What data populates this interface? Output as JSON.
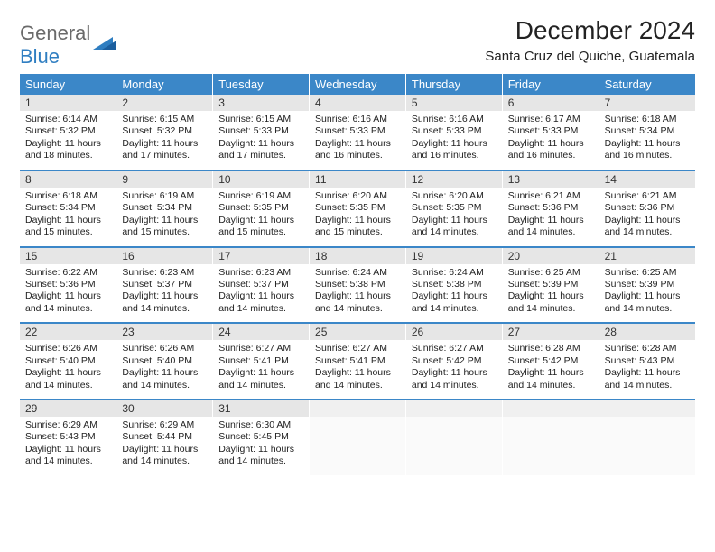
{
  "logo": {
    "top": "General",
    "bottom": "Blue"
  },
  "title": "December 2024",
  "location": "Santa Cruz del Quiche, Guatemala",
  "colors": {
    "header_bg": "#3b87c8",
    "header_fg": "#ffffff",
    "daynum_bg": "#e6e6e6",
    "separator": "#3b87c8",
    "logo_gray": "#6a6a6a",
    "logo_blue": "#2f7ec1"
  },
  "dayNames": [
    "Sunday",
    "Monday",
    "Tuesday",
    "Wednesday",
    "Thursday",
    "Friday",
    "Saturday"
  ],
  "weeks": [
    [
      {
        "num": "1",
        "sunrise": "Sunrise: 6:14 AM",
        "sunset": "Sunset: 5:32 PM",
        "daylight": "Daylight: 11 hours and 18 minutes."
      },
      {
        "num": "2",
        "sunrise": "Sunrise: 6:15 AM",
        "sunset": "Sunset: 5:32 PM",
        "daylight": "Daylight: 11 hours and 17 minutes."
      },
      {
        "num": "3",
        "sunrise": "Sunrise: 6:15 AM",
        "sunset": "Sunset: 5:33 PM",
        "daylight": "Daylight: 11 hours and 17 minutes."
      },
      {
        "num": "4",
        "sunrise": "Sunrise: 6:16 AM",
        "sunset": "Sunset: 5:33 PM",
        "daylight": "Daylight: 11 hours and 16 minutes."
      },
      {
        "num": "5",
        "sunrise": "Sunrise: 6:16 AM",
        "sunset": "Sunset: 5:33 PM",
        "daylight": "Daylight: 11 hours and 16 minutes."
      },
      {
        "num": "6",
        "sunrise": "Sunrise: 6:17 AM",
        "sunset": "Sunset: 5:33 PM",
        "daylight": "Daylight: 11 hours and 16 minutes."
      },
      {
        "num": "7",
        "sunrise": "Sunrise: 6:18 AM",
        "sunset": "Sunset: 5:34 PM",
        "daylight": "Daylight: 11 hours and 16 minutes."
      }
    ],
    [
      {
        "num": "8",
        "sunrise": "Sunrise: 6:18 AM",
        "sunset": "Sunset: 5:34 PM",
        "daylight": "Daylight: 11 hours and 15 minutes."
      },
      {
        "num": "9",
        "sunrise": "Sunrise: 6:19 AM",
        "sunset": "Sunset: 5:34 PM",
        "daylight": "Daylight: 11 hours and 15 minutes."
      },
      {
        "num": "10",
        "sunrise": "Sunrise: 6:19 AM",
        "sunset": "Sunset: 5:35 PM",
        "daylight": "Daylight: 11 hours and 15 minutes."
      },
      {
        "num": "11",
        "sunrise": "Sunrise: 6:20 AM",
        "sunset": "Sunset: 5:35 PM",
        "daylight": "Daylight: 11 hours and 15 minutes."
      },
      {
        "num": "12",
        "sunrise": "Sunrise: 6:20 AM",
        "sunset": "Sunset: 5:35 PM",
        "daylight": "Daylight: 11 hours and 14 minutes."
      },
      {
        "num": "13",
        "sunrise": "Sunrise: 6:21 AM",
        "sunset": "Sunset: 5:36 PM",
        "daylight": "Daylight: 11 hours and 14 minutes."
      },
      {
        "num": "14",
        "sunrise": "Sunrise: 6:21 AM",
        "sunset": "Sunset: 5:36 PM",
        "daylight": "Daylight: 11 hours and 14 minutes."
      }
    ],
    [
      {
        "num": "15",
        "sunrise": "Sunrise: 6:22 AM",
        "sunset": "Sunset: 5:36 PM",
        "daylight": "Daylight: 11 hours and 14 minutes."
      },
      {
        "num": "16",
        "sunrise": "Sunrise: 6:23 AM",
        "sunset": "Sunset: 5:37 PM",
        "daylight": "Daylight: 11 hours and 14 minutes."
      },
      {
        "num": "17",
        "sunrise": "Sunrise: 6:23 AM",
        "sunset": "Sunset: 5:37 PM",
        "daylight": "Daylight: 11 hours and 14 minutes."
      },
      {
        "num": "18",
        "sunrise": "Sunrise: 6:24 AM",
        "sunset": "Sunset: 5:38 PM",
        "daylight": "Daylight: 11 hours and 14 minutes."
      },
      {
        "num": "19",
        "sunrise": "Sunrise: 6:24 AM",
        "sunset": "Sunset: 5:38 PM",
        "daylight": "Daylight: 11 hours and 14 minutes."
      },
      {
        "num": "20",
        "sunrise": "Sunrise: 6:25 AM",
        "sunset": "Sunset: 5:39 PM",
        "daylight": "Daylight: 11 hours and 14 minutes."
      },
      {
        "num": "21",
        "sunrise": "Sunrise: 6:25 AM",
        "sunset": "Sunset: 5:39 PM",
        "daylight": "Daylight: 11 hours and 14 minutes."
      }
    ],
    [
      {
        "num": "22",
        "sunrise": "Sunrise: 6:26 AM",
        "sunset": "Sunset: 5:40 PM",
        "daylight": "Daylight: 11 hours and 14 minutes."
      },
      {
        "num": "23",
        "sunrise": "Sunrise: 6:26 AM",
        "sunset": "Sunset: 5:40 PM",
        "daylight": "Daylight: 11 hours and 14 minutes."
      },
      {
        "num": "24",
        "sunrise": "Sunrise: 6:27 AM",
        "sunset": "Sunset: 5:41 PM",
        "daylight": "Daylight: 11 hours and 14 minutes."
      },
      {
        "num": "25",
        "sunrise": "Sunrise: 6:27 AM",
        "sunset": "Sunset: 5:41 PM",
        "daylight": "Daylight: 11 hours and 14 minutes."
      },
      {
        "num": "26",
        "sunrise": "Sunrise: 6:27 AM",
        "sunset": "Sunset: 5:42 PM",
        "daylight": "Daylight: 11 hours and 14 minutes."
      },
      {
        "num": "27",
        "sunrise": "Sunrise: 6:28 AM",
        "sunset": "Sunset: 5:42 PM",
        "daylight": "Daylight: 11 hours and 14 minutes."
      },
      {
        "num": "28",
        "sunrise": "Sunrise: 6:28 AM",
        "sunset": "Sunset: 5:43 PM",
        "daylight": "Daylight: 11 hours and 14 minutes."
      }
    ],
    [
      {
        "num": "29",
        "sunrise": "Sunrise: 6:29 AM",
        "sunset": "Sunset: 5:43 PM",
        "daylight": "Daylight: 11 hours and 14 minutes."
      },
      {
        "num": "30",
        "sunrise": "Sunrise: 6:29 AM",
        "sunset": "Sunset: 5:44 PM",
        "daylight": "Daylight: 11 hours and 14 minutes."
      },
      {
        "num": "31",
        "sunrise": "Sunrise: 6:30 AM",
        "sunset": "Sunset: 5:45 PM",
        "daylight": "Daylight: 11 hours and 14 minutes."
      },
      null,
      null,
      null,
      null
    ]
  ]
}
